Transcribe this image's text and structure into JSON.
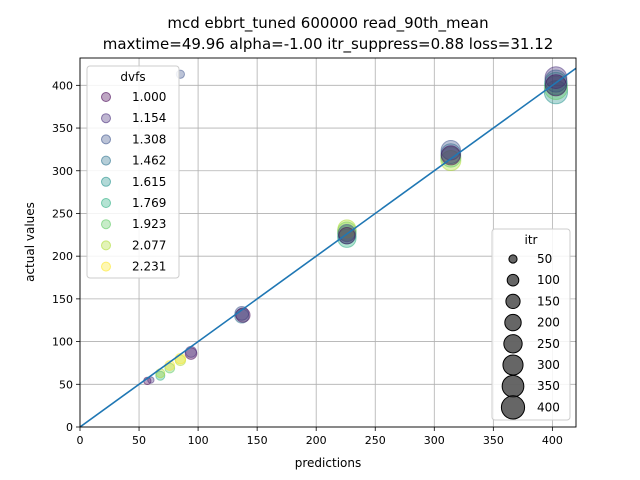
{
  "chart_data": {
    "type": "scatter",
    "title": "mcd ebbrt_tuned 600000 read_90th_mean",
    "subtitle": "maxtime=49.96 alpha=-1.00 itr_suppress=0.88 loss=31.12",
    "xlabel": "predictions",
    "ylabel": "actual values",
    "xlim": [
      0,
      420
    ],
    "ylim": [
      0,
      432
    ],
    "xticks": [
      0,
      50,
      100,
      150,
      200,
      250,
      300,
      350,
      400
    ],
    "yticks": [
      0,
      50,
      100,
      150,
      200,
      250,
      300,
      350,
      400
    ],
    "grid": true,
    "fit_line": {
      "x": [
        0,
        420
      ],
      "y": [
        0,
        420
      ],
      "color": "#1f77b4"
    },
    "legend_dvfs": {
      "title": "dvfs",
      "placement": "upper-left",
      "entries": [
        {
          "label": "1.000",
          "color": "#440154"
        },
        {
          "label": "1.154",
          "color": "#472d7b"
        },
        {
          "label": "1.308",
          "color": "#3b528b"
        },
        {
          "label": "1.462",
          "color": "#2c728e"
        },
        {
          "label": "1.615",
          "color": "#21918c"
        },
        {
          "label": "1.769",
          "color": "#28ae80"
        },
        {
          "label": "1.923",
          "color": "#5ec962"
        },
        {
          "label": "2.077",
          "color": "#addc30"
        },
        {
          "label": "2.231",
          "color": "#fde725"
        }
      ]
    },
    "legend_itr": {
      "title": "itr",
      "placement": "lower-right",
      "entries": [
        {
          "label": "50",
          "value": 50
        },
        {
          "label": "100",
          "value": 100
        },
        {
          "label": "150",
          "value": 150
        },
        {
          "label": "200",
          "value": 200
        },
        {
          "label": "250",
          "value": 250
        },
        {
          "label": "300",
          "value": 300
        },
        {
          "label": "350",
          "value": 350
        },
        {
          "label": "400",
          "value": 400
        }
      ]
    },
    "points": [
      {
        "x": 85,
        "y": 413,
        "itr": 50,
        "dvfs": 1.308
      },
      {
        "x": 57,
        "y": 54,
        "itr": 40,
        "dvfs": 1.0
      },
      {
        "x": 60,
        "y": 55,
        "itr": 30,
        "dvfs": 1.154
      },
      {
        "x": 68,
        "y": 60,
        "itr": 60,
        "dvfs": 1.769
      },
      {
        "x": 68,
        "y": 63,
        "itr": 60,
        "dvfs": 2.077
      },
      {
        "x": 76,
        "y": 69,
        "itr": 70,
        "dvfs": 1.923
      },
      {
        "x": 76,
        "y": 72,
        "itr": 70,
        "dvfs": 2.231
      },
      {
        "x": 85,
        "y": 78,
        "itr": 80,
        "dvfs": 2.077
      },
      {
        "x": 85,
        "y": 80,
        "itr": 80,
        "dvfs": 2.231
      },
      {
        "x": 94,
        "y": 86,
        "itr": 100,
        "dvfs": 1.0
      },
      {
        "x": 94,
        "y": 88,
        "itr": 90,
        "dvfs": 1.154
      },
      {
        "x": 137,
        "y": 130,
        "itr": 150,
        "dvfs": 1.462
      },
      {
        "x": 137,
        "y": 133,
        "itr": 140,
        "dvfs": 1.308
      },
      {
        "x": 138,
        "y": 131,
        "itr": 150,
        "dvfs": 1.0
      },
      {
        "x": 226,
        "y": 221,
        "itr": 250,
        "dvfs": 1.769
      },
      {
        "x": 226,
        "y": 225,
        "itr": 250,
        "dvfs": 1.615
      },
      {
        "x": 226,
        "y": 229,
        "itr": 260,
        "dvfs": 1.923
      },
      {
        "x": 226,
        "y": 232,
        "itr": 240,
        "dvfs": 2.077
      },
      {
        "x": 226,
        "y": 227,
        "itr": 220,
        "dvfs": 1.308
      },
      {
        "x": 226,
        "y": 224,
        "itr": 200,
        "dvfs": 1.0
      },
      {
        "x": 314,
        "y": 312,
        "itr": 300,
        "dvfs": 2.077
      },
      {
        "x": 314,
        "y": 316,
        "itr": 300,
        "dvfs": 1.923
      },
      {
        "x": 314,
        "y": 320,
        "itr": 290,
        "dvfs": 1.462
      },
      {
        "x": 314,
        "y": 324,
        "itr": 280,
        "dvfs": 1.308
      },
      {
        "x": 314,
        "y": 318,
        "itr": 270,
        "dvfs": 1.0
      },
      {
        "x": 403,
        "y": 392,
        "itr": 400,
        "dvfs": 1.615
      },
      {
        "x": 403,
        "y": 397,
        "itr": 400,
        "dvfs": 1.923
      },
      {
        "x": 403,
        "y": 402,
        "itr": 380,
        "dvfs": 1.769
      },
      {
        "x": 403,
        "y": 405,
        "itr": 360,
        "dvfs": 1.462
      },
      {
        "x": 403,
        "y": 409,
        "itr": 350,
        "dvfs": 1.154
      },
      {
        "x": 403,
        "y": 400,
        "itr": 330,
        "dvfs": 1.0
      }
    ]
  }
}
